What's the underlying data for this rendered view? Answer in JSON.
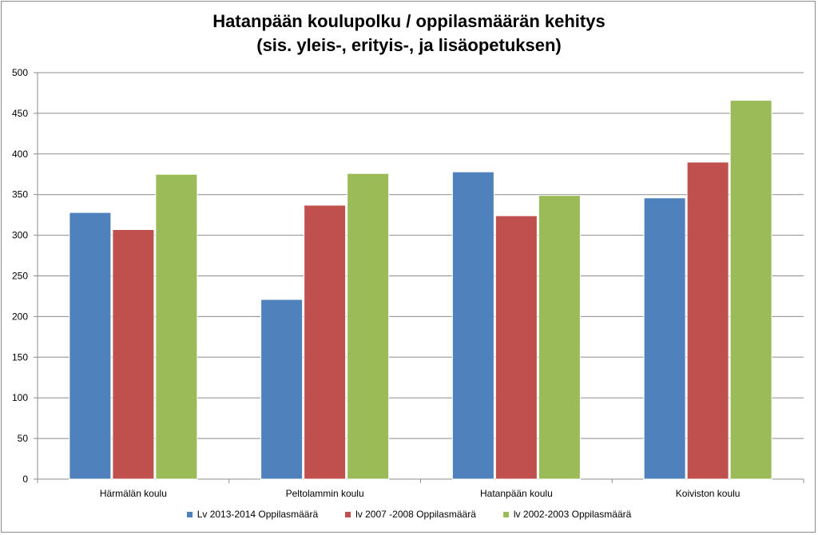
{
  "chart_data": {
    "type": "bar",
    "title_line1": "Hatanpään koulupolku / oppilasmäärän kehitys",
    "title_line2": "(sis. yleis-, erityis-, ja lisäopetuksen)",
    "categories": [
      "Härmälän koulu",
      "Peltolammin koulu",
      "Hatanpään koulu",
      "Koiviston koulu"
    ],
    "series": [
      {
        "name": "Lv 2013-2014  Oppilasmäärä",
        "color": "#4F81BD",
        "values": [
          328,
          221,
          378,
          346
        ]
      },
      {
        "name": "lv 2007 -2008 Oppilasmäärä",
        "color": "#C0504D",
        "values": [
          307,
          337,
          324,
          390
        ]
      },
      {
        "name": "lv 2002-2003 Oppilasmäärä",
        "color": "#9BBB59",
        "values": [
          375,
          376,
          349,
          466
        ]
      }
    ],
    "ylim": [
      0,
      500
    ],
    "yticks": [
      0,
      50,
      100,
      150,
      200,
      250,
      300,
      350,
      400,
      450,
      500
    ],
    "grid": true,
    "legend_position": "bottom"
  }
}
